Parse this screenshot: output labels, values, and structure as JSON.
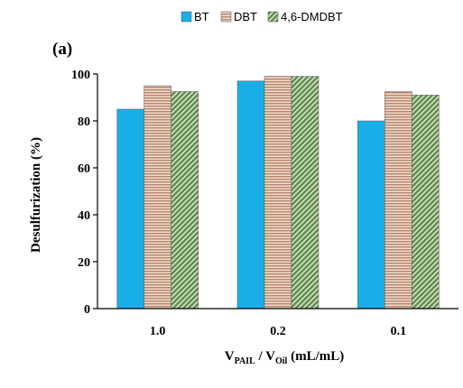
{
  "chart_data": {
    "type": "bar",
    "panel_label": "(a)",
    "title": "",
    "xlabel": {
      "parts": [
        {
          "text": "V",
          "sub": false
        },
        {
          "text": "PAIL",
          "sub": true
        },
        {
          "text": " / V",
          "sub": false
        },
        {
          "text": "Oil",
          "sub": true
        },
        {
          "text": " (mL/mL)",
          "sub": false
        }
      ]
    },
    "ylabel": "Desulfurization (%)",
    "ylim": [
      0,
      100
    ],
    "yticks": [
      0,
      20,
      40,
      60,
      80,
      100
    ],
    "categories": [
      "1.0",
      "0.2",
      "0.1"
    ],
    "legend_position": "top",
    "grid": false,
    "series": [
      {
        "name": "BT",
        "values": [
          85,
          97,
          80
        ],
        "color": "#1aaee8",
        "pattern": "solid"
      },
      {
        "name": "DBT",
        "values": [
          95,
          99,
          92.5
        ],
        "color": "#c89a82",
        "pattern": "horizontal-stripes"
      },
      {
        "name": "4,6-DMDBT",
        "values": [
          92.5,
          99,
          91
        ],
        "color": "#6f9a5e",
        "pattern": "diagonal-hatch"
      }
    ]
  }
}
